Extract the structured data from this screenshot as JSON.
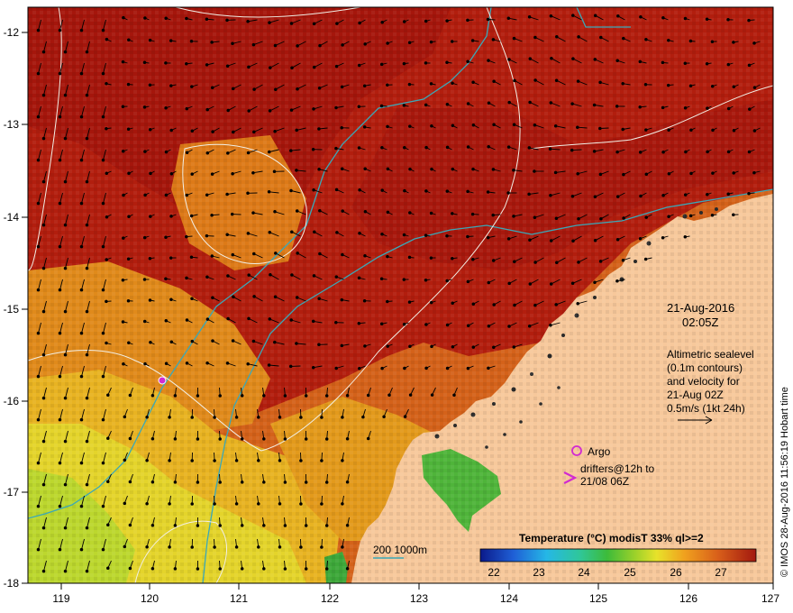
{
  "date": "21-Aug-2016",
  "time": "02:05Z",
  "legend_lines": [
    "Altimetric sealevel",
    "(0.1m contours)",
    "and velocity for",
    "21-Aug 02Z",
    "0.5m/s (1kt 24h)"
  ],
  "argo_label": "Argo",
  "drifters_lines": [
    "drifters@12h to",
    "21/08 06Z"
  ],
  "bathymetry_label": "200  1000m",
  "colorbar": {
    "title": "Temperature (°C) modisT 33% ql>=2",
    "ticks": [
      "22",
      "23",
      "24",
      "25",
      "26",
      "27"
    ]
  },
  "credit": "© IMOS 28-Aug-2016 11:56:19 Hobart time",
  "axes": {
    "x_ticks": [
      "119",
      "120",
      "121",
      "122",
      "123",
      "124",
      "125",
      "126",
      "127"
    ],
    "y_ticks": [
      "-12",
      "-13",
      "-14",
      "-15",
      "-16",
      "-17",
      "-18"
    ]
  },
  "colors": {
    "land": "#f7c89b",
    "hot": "#b21e0e",
    "warm": "#d65a12",
    "mid": "#e39a1c",
    "cool": "#e6d12a",
    "green": "#4fb43a",
    "contour": "#f2efe6",
    "bathy": "#3aa8b8",
    "argo": "#d12ad1"
  }
}
